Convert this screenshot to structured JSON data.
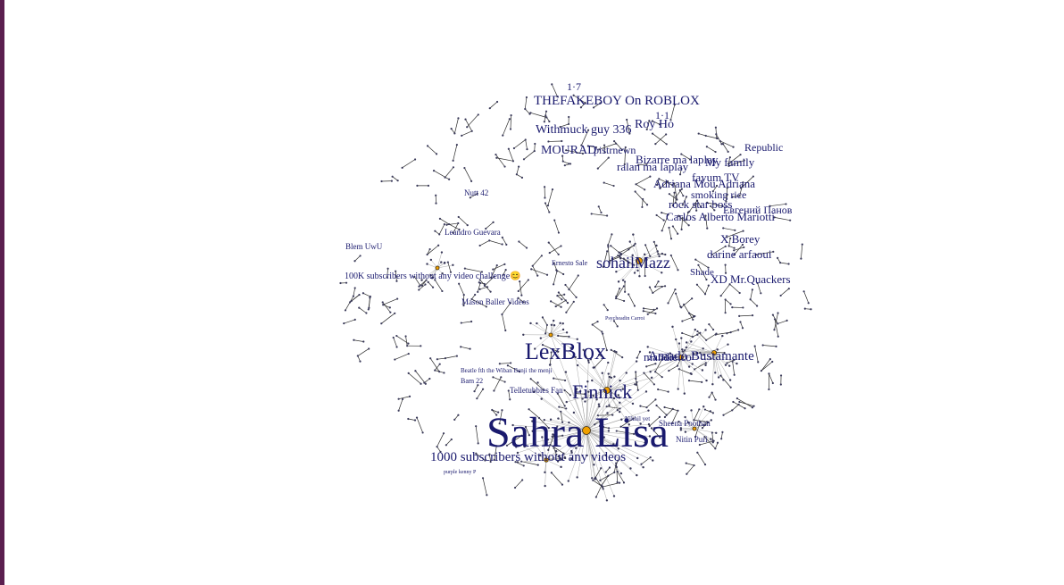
{
  "colors": {
    "label": "#1a1a6e",
    "hub": "#f0a000",
    "edge": "#2b2b2b",
    "border": "#5b1f4f"
  },
  "labels": [
    {
      "text": "Sahra Lisa"
    },
    {
      "text": "LexBlox"
    },
    {
      "text": "Finnick"
    },
    {
      "text": "sohailMazz"
    },
    {
      "text": "Amado Bustamante"
    },
    {
      "text": "1000 subscribers without any videos"
    },
    {
      "text": "THEFAKEBOY On ROBLOX"
    },
    {
      "text": "Withmuck guy 336"
    },
    {
      "text": "MOURAD"
    },
    {
      "text": "Roy Ho"
    },
    {
      "text": "My family"
    },
    {
      "text": "Adriana Mou Adriana"
    },
    {
      "text": "rock star boss"
    },
    {
      "text": "Carlos Alberto Mariotti"
    },
    {
      "text": "X Borey"
    },
    {
      "text": "darine arfaoui"
    },
    {
      "text": "XD Mr.Quackers"
    },
    {
      "text": "Shade"
    },
    {
      "text": "Leandro Guevara"
    },
    {
      "text": "Nutt 42"
    },
    {
      "text": "Blem UwU"
    },
    {
      "text": "100K subscribers without any video challenge😊"
    },
    {
      "text": "Ernesto Sale"
    },
    {
      "text": "Mason Baller Videos"
    },
    {
      "text": "Telletubbies Fan"
    },
    {
      "text": "Beatle fth the Wiban Benji the menji"
    },
    {
      "text": "Bam 22"
    },
    {
      "text": "Psycheadin Carroi"
    },
    {
      "text": "Sheena Poothan"
    },
    {
      "text": "Nitin Puri"
    },
    {
      "text": "Nikhil yet"
    },
    {
      "text": "mandie.co"
    },
    {
      "text": "1·7"
    },
    {
      "text": "1·1"
    },
    {
      "text": "Евгений Панов"
    },
    {
      "text": "ralan ma laplay"
    },
    {
      "text": "Bizarre ma laplay"
    },
    {
      "text": "fayum TV"
    },
    {
      "text": "Republic"
    },
    {
      "text": "smoking rice"
    },
    {
      "text": "pistrnewn"
    },
    {
      "text": "purple kenny P"
    }
  ]
}
